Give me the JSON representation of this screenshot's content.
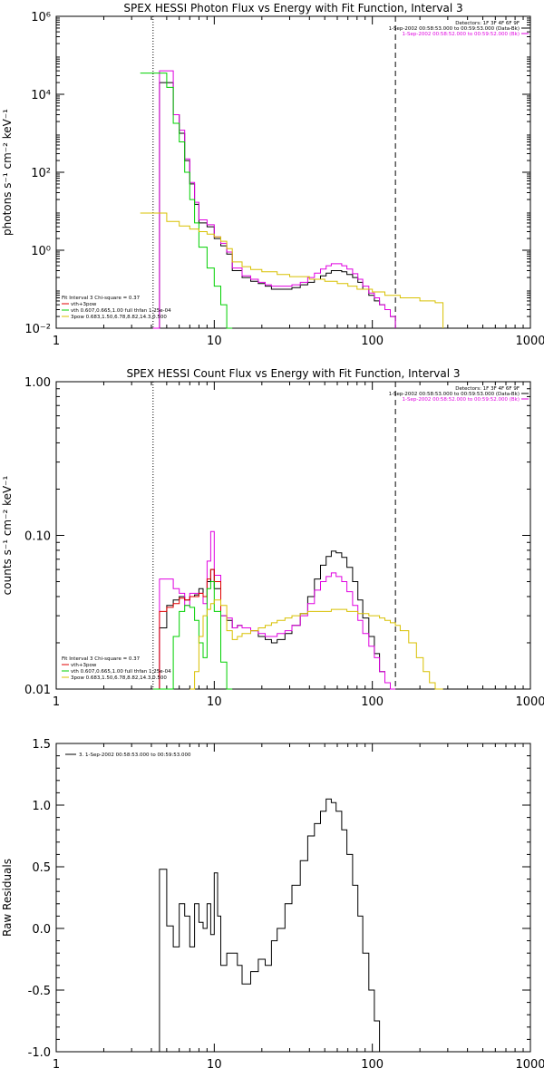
{
  "colors": {
    "black": "#000000",
    "magenta": "#e000e0",
    "red": "#e00000",
    "green": "#00d000",
    "yellow": "#d8c000"
  },
  "chart_data": [
    {
      "type": "line",
      "title": "SPEX HESSI Photon Flux vs Energy with Fit Function, Interval 3",
      "ylabel": "photons s⁻¹ cm⁻² keV⁻¹",
      "xlabel": "",
      "xscale": "log",
      "yscale": "log",
      "xlim": [
        1,
        1000
      ],
      "ylim": [
        0.01,
        1000000
      ],
      "x_ticks": [
        "1",
        "10",
        "100",
        "1000"
      ],
      "y_ticks": [
        {
          "v": 0.01,
          "label": "10⁻²"
        },
        {
          "v": 1,
          "label": "10⁰"
        },
        {
          "v": 100,
          "label": "10²"
        },
        {
          "v": 10000,
          "label": "10⁴"
        },
        {
          "v": 1000000,
          "label": "10⁶"
        }
      ],
      "vlines": [
        {
          "x": 4.1,
          "style": "dotted"
        },
        {
          "x": 140,
          "style": "dashed"
        }
      ],
      "header": [
        "Detectors: 1F 3F 4F 6F 9F",
        "1-Sep-2002 00:58:53.000 to 00:59:53.000 (Data-Bk)",
        "1-Sep-2002 00:58:52.000 to 00:59:52.000 (Bk)"
      ],
      "header_colors": [
        "#000000",
        "#000000",
        "#e000e0"
      ],
      "legend": [
        "Fit Interval 3   Chi-square = 0.37",
        "vth+3pow",
        "vth 0.607,0.665,1.00  full thfan 1.25e-04",
        "3pow 0.683,1.50,6.78,8.82,14.3,0.500"
      ],
      "legend_colors": [
        "#000000",
        "#e00000",
        "#00d000",
        "#d8c000"
      ],
      "series": [
        {
          "name": "Data-Bk",
          "color": "#000000",
          "x": [
            4.1,
            4.5,
            5,
            5.5,
            6,
            6.5,
            7,
            7.5,
            8,
            9,
            10,
            11,
            12,
            13,
            15,
            17,
            19,
            21,
            23,
            25,
            28,
            31,
            35,
            39,
            43,
            47,
            51,
            55,
            59,
            64,
            69,
            75,
            81,
            87,
            95,
            103,
            111,
            120,
            130,
            140
          ],
          "y": [
            0.01,
            20000,
            20000,
            3000,
            1000,
            200,
            50,
            15,
            5,
            4,
            2,
            1.3,
            0.8,
            0.3,
            0.2,
            0.16,
            0.14,
            0.12,
            0.1,
            0.1,
            0.1,
            0.11,
            0.13,
            0.15,
            0.18,
            0.22,
            0.26,
            0.3,
            0.3,
            0.28,
            0.24,
            0.2,
            0.15,
            0.1,
            0.07,
            0.05,
            0.04,
            0.03,
            0.02,
            0.01
          ]
        },
        {
          "name": "Bk",
          "color": "#e000e0",
          "x": [
            4.1,
            4.5,
            5,
            5.5,
            6,
            6.5,
            7,
            7.5,
            8,
            9,
            10,
            11,
            12,
            13,
            15,
            17,
            19,
            21,
            23,
            25,
            28,
            31,
            35,
            39,
            43,
            47,
            51,
            55,
            59,
            64,
            69,
            75,
            81,
            87,
            95,
            103,
            111,
            120,
            130,
            140
          ],
          "y": [
            0.01,
            40000,
            40000,
            3000,
            1200,
            220,
            55,
            17,
            6,
            4.5,
            2.2,
            1.5,
            0.9,
            0.35,
            0.22,
            0.18,
            0.15,
            0.13,
            0.12,
            0.12,
            0.12,
            0.13,
            0.15,
            0.2,
            0.26,
            0.33,
            0.4,
            0.45,
            0.45,
            0.4,
            0.33,
            0.25,
            0.18,
            0.12,
            0.08,
            0.06,
            0.04,
            0.03,
            0.02,
            0.01
          ]
        },
        {
          "name": "vth",
          "color": "#00d000",
          "x": [
            3.4,
            4.1,
            4.5,
            5,
            5.5,
            6,
            6.5,
            7,
            7.5,
            8,
            9,
            10,
            11,
            12,
            13
          ],
          "y": [
            35000,
            35000,
            35000,
            15000,
            1800,
            600,
            100,
            20,
            5,
            1.2,
            0.35,
            0.12,
            0.04,
            0.01,
            0.01
          ]
        },
        {
          "name": "3pow",
          "color": "#d8c000",
          "x": [
            3.4,
            4.1,
            5,
            6,
            7,
            8,
            9,
            10,
            11,
            12,
            13,
            15,
            17,
            20,
            25,
            30,
            40,
            50,
            60,
            70,
            80,
            100,
            120,
            150,
            200,
            250,
            280
          ],
          "y": [
            9,
            9,
            5.5,
            4.2,
            3.5,
            3,
            2.6,
            2.2,
            1.7,
            1.1,
            0.5,
            0.38,
            0.32,
            0.28,
            0.24,
            0.21,
            0.18,
            0.16,
            0.14,
            0.12,
            0.1,
            0.085,
            0.07,
            0.06,
            0.05,
            0.045,
            0.01
          ]
        }
      ]
    },
    {
      "type": "line",
      "title": "SPEX HESSI Count Flux vs Energy with Fit Function, Interval 3",
      "ylabel": "counts s⁻¹ cm⁻² keV⁻¹",
      "xlabel": "",
      "xscale": "log",
      "yscale": "log",
      "xlim": [
        1,
        1000
      ],
      "ylim": [
        0.01,
        1.0
      ],
      "x_ticks": [
        "1",
        "10",
        "100",
        "1000"
      ],
      "y_ticks": [
        {
          "v": 0.01,
          "label": "0.01"
        },
        {
          "v": 0.1,
          "label": "0.10"
        },
        {
          "v": 1.0,
          "label": "1.00"
        }
      ],
      "vlines": [
        {
          "x": 4.1,
          "style": "dotted"
        },
        {
          "x": 140,
          "style": "dashed"
        }
      ],
      "header": [
        "Detectors: 1F 3F 4F 6F 9F",
        "1-Sep-2002 00:58:53.000 to 00:59:53.000 (Data-Bk)",
        "1-Sep-2002 00:58:52.000 to 00:59:52.000 (Bk)"
      ],
      "header_colors": [
        "#000000",
        "#000000",
        "#e000e0"
      ],
      "legend": [
        "Fit Interval 3   Chi-square = 0.37",
        "vth+3pow",
        "vth 0.607,0.665,1.00  full thfan 1.25e-04",
        "3pow 0.683,1.50,6.78,8.82,14.3,0.500"
      ],
      "legend_colors": [
        "#000000",
        "#e00000",
        "#00d000",
        "#d8c000"
      ],
      "series": [
        {
          "name": "Data-Bk",
          "color": "#000000",
          "x": [
            4.1,
            4.5,
            5,
            5.5,
            6,
            6.5,
            7,
            7.5,
            8,
            8.5,
            9,
            9.5,
            10,
            11,
            12,
            13,
            14,
            15,
            17,
            19,
            21,
            23,
            25,
            28,
            31,
            35,
            39,
            43,
            47,
            51,
            55,
            59,
            64,
            69,
            75,
            81,
            87,
            95,
            103,
            111,
            120,
            130,
            140
          ],
          "y": [
            0.01,
            0.025,
            0.035,
            0.038,
            0.04,
            0.038,
            0.04,
            0.041,
            0.045,
            0.04,
            0.05,
            0.06,
            0.045,
            0.03,
            0.028,
            0.025,
            0.026,
            0.025,
            0.024,
            0.022,
            0.021,
            0.02,
            0.021,
            0.023,
            0.026,
            0.031,
            0.04,
            0.052,
            0.064,
            0.073,
            0.079,
            0.077,
            0.072,
            0.062,
            0.05,
            0.038,
            0.029,
            0.022,
            0.017,
            0.013,
            0.011,
            0.01,
            0.01
          ]
        },
        {
          "name": "Bk",
          "color": "#e000e0",
          "x": [
            4.1,
            4.5,
            5,
            5.5,
            6,
            6.5,
            7,
            7.5,
            8,
            8.5,
            9,
            9.5,
            10,
            11,
            12,
            13,
            14,
            15,
            17,
            19,
            21,
            23,
            25,
            28,
            31,
            35,
            39,
            43,
            47,
            51,
            55,
            59,
            64,
            69,
            75,
            81,
            87,
            95,
            103,
            111,
            120,
            130,
            140
          ],
          "y": [
            0.01,
            0.052,
            0.052,
            0.045,
            0.042,
            0.035,
            0.042,
            0.042,
            0.042,
            0.036,
            0.068,
            0.106,
            0.055,
            0.03,
            0.029,
            0.025,
            0.026,
            0.025,
            0.024,
            0.023,
            0.022,
            0.022,
            0.023,
            0.024,
            0.026,
            0.03,
            0.036,
            0.044,
            0.05,
            0.054,
            0.057,
            0.054,
            0.05,
            0.043,
            0.035,
            0.028,
            0.023,
            0.019,
            0.016,
            0.013,
            0.011,
            0.01,
            0.01
          ]
        },
        {
          "name": "vth+3pow",
          "color": "#e00000",
          "x": [
            4.1,
            4.5,
            5,
            5.5,
            6,
            6.5,
            7,
            7.5,
            8,
            8.5,
            9,
            9.5,
            10,
            11
          ],
          "y": [
            0.01,
            0.032,
            0.034,
            0.036,
            0.039,
            0.038,
            0.04,
            0.04,
            0.042,
            0.04,
            0.052,
            0.06,
            0.05,
            0.03
          ]
        },
        {
          "name": "vth",
          "color": "#00d000",
          "x": [
            4.1,
            5,
            5.5,
            6,
            6.5,
            7,
            7.5,
            8,
            8.5,
            9,
            9.5,
            10,
            11,
            12,
            13
          ],
          "y": [
            0.01,
            0.01,
            0.022,
            0.032,
            0.035,
            0.034,
            0.028,
            0.02,
            0.016,
            0.045,
            0.05,
            0.032,
            0.015,
            0.01,
            0.01
          ]
        },
        {
          "name": "3pow",
          "color": "#d8c000",
          "x": [
            7,
            7.5,
            8,
            8.5,
            9,
            9.5,
            10,
            11,
            12,
            13,
            14,
            15,
            17,
            19,
            21,
            23,
            25,
            28,
            31,
            35,
            39,
            43,
            47,
            51,
            55,
            59,
            64,
            69,
            75,
            81,
            87,
            95,
            103,
            111,
            120,
            130,
            140,
            150,
            170,
            190,
            210,
            230,
            250,
            280
          ],
          "y": [
            0.01,
            0.013,
            0.022,
            0.03,
            0.033,
            0.036,
            0.038,
            0.035,
            0.024,
            0.021,
            0.022,
            0.023,
            0.024,
            0.025,
            0.026,
            0.027,
            0.028,
            0.029,
            0.03,
            0.031,
            0.032,
            0.032,
            0.032,
            0.032,
            0.033,
            0.033,
            0.033,
            0.032,
            0.032,
            0.031,
            0.031,
            0.03,
            0.03,
            0.029,
            0.028,
            0.027,
            0.026,
            0.024,
            0.02,
            0.016,
            0.013,
            0.011,
            0.01,
            0.01
          ]
        }
      ]
    },
    {
      "type": "line",
      "title": "",
      "ylabel": "Raw Residuals",
      "xlabel": "",
      "xscale": "log",
      "yscale": "linear",
      "xlim": [
        1,
        1000
      ],
      "ylim": [
        -1.0,
        1.5
      ],
      "x_ticks": [
        "1",
        "10",
        "100",
        "1000"
      ],
      "y_ticks": [
        {
          "v": -1.0,
          "label": "-1.0"
        },
        {
          "v": -0.5,
          "label": "-0.5"
        },
        {
          "v": 0.0,
          "label": "0.0"
        },
        {
          "v": 0.5,
          "label": "0.5"
        },
        {
          "v": 1.0,
          "label": "1.0"
        },
        {
          "v": 1.5,
          "label": "1.5"
        }
      ],
      "vlines": [],
      "header": [
        "3.  1-Sep-2002 00:58:53.000 to 00:59:53.000"
      ],
      "header_colors": [
        "#000000"
      ],
      "legend": [],
      "legend_colors": [],
      "series": [
        {
          "name": "3.  1-Sep-2002 00:58:53.000 to 00:59:53.000",
          "color": "#000000",
          "x": [
            4.1,
            4.5,
            5,
            5.5,
            6,
            6.5,
            7,
            7.5,
            8,
            8.5,
            9,
            9.5,
            10,
            10.5,
            11,
            12,
            13,
            14,
            15,
            17,
            19,
            21,
            23,
            25,
            28,
            31,
            35,
            39,
            43,
            47,
            51,
            55,
            59,
            64,
            69,
            75,
            81,
            87,
            95,
            103,
            111,
            120,
            130,
            140
          ],
          "y": [
            -1.0,
            0.48,
            0.02,
            -0.15,
            0.2,
            0.1,
            -0.15,
            0.2,
            0.05,
            0.0,
            0.2,
            -0.05,
            0.45,
            0.1,
            -0.3,
            -0.2,
            -0.2,
            -0.3,
            -0.45,
            -0.35,
            -0.25,
            -0.3,
            -0.1,
            0.0,
            0.2,
            0.35,
            0.55,
            0.75,
            0.85,
            0.95,
            1.05,
            1.02,
            0.95,
            0.8,
            0.6,
            0.35,
            0.1,
            -0.2,
            -0.5,
            -0.75,
            -1.0,
            -1.0,
            -1.0,
            -1.0
          ]
        }
      ]
    }
  ]
}
